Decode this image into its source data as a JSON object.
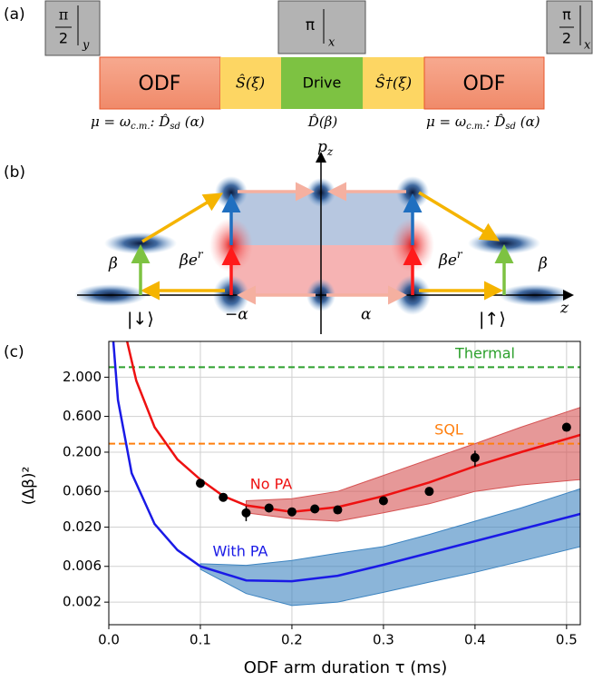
{
  "panel_a": {
    "label": "(a)",
    "pulses": [
      {
        "numerator": "π",
        "denominator": "2",
        "axis": "y"
      },
      {
        "numerator": "π",
        "axis": "x"
      },
      {
        "numerator": "π",
        "denominator": "2",
        "axis": "x"
      }
    ],
    "blocks": [
      "ODF",
      "Ŝ(ξ)",
      "Drive",
      "Ŝ†(ξ)",
      "ODF"
    ],
    "captions": [
      [
        "μ = ω",
        "c.m.",
        ": D̂",
        "sd",
        " (α)"
      ],
      [
        "D̂(β)"
      ],
      [
        "μ = ω",
        "c.m.",
        ": D̂",
        "sd",
        " (α)"
      ]
    ]
  },
  "panel_b": {
    "label": "(b)",
    "y_axis": {
      "base": "p",
      "sub": "z"
    },
    "x_axis": "z",
    "beta": "β",
    "beta_squeezed": [
      "βe",
      "r"
    ],
    "spin_down": "|↓⟩",
    "spin_up": "|↑⟩",
    "minus_alpha": "−α",
    "alpha": "α"
  },
  "chart_data": {
    "type": "line",
    "panel_label": "(c)",
    "xlabel": "ODF arm duration τ (ms)",
    "ylabel": "(Δβ)²",
    "log_y": true,
    "grid": true,
    "xlim": [
      0,
      0.515
    ],
    "ylim": [
      0.001,
      6
    ],
    "xticks": [
      {
        "value": 0,
        "label": "0.0"
      },
      0.1,
      0.2,
      0.3,
      0.4,
      0.5
    ],
    "yticks": [
      0.002,
      0.006,
      {
        "value": 0.02,
        "label": "0.020"
      },
      {
        "value": 0.06,
        "label": "0.060"
      },
      {
        "value": 0.2,
        "label": "0.200"
      },
      {
        "value": 0.6,
        "label": "0.600"
      },
      {
        "value": 2,
        "label": "2.000"
      }
    ],
    "series": [
      {
        "name": "No PA",
        "color": "#ee1111",
        "band_color": "#d65454",
        "x": [
          0.02,
          0.03,
          0.05,
          0.075,
          0.1,
          0.125,
          0.15,
          0.2,
          0.25,
          0.3,
          0.35,
          0.4,
          0.45,
          0.515
        ],
        "values": [
          6,
          1.8,
          0.43,
          0.16,
          0.086,
          0.052,
          0.039,
          0.032,
          0.037,
          0.052,
          0.079,
          0.13,
          0.2,
          0.34
        ],
        "band_x": [
          0.15,
          0.2,
          0.25,
          0.3,
          0.35,
          0.4,
          0.45,
          0.515
        ],
        "band_upper": [
          0.045,
          0.048,
          0.06,
          0.098,
          0.16,
          0.26,
          0.43,
          0.79
        ],
        "band_lower": [
          0.031,
          0.026,
          0.024,
          0.031,
          0.041,
          0.06,
          0.073,
          0.086
        ]
      },
      {
        "name": "With PA",
        "color": "#1a1ae6",
        "band_color": "#3d84c0",
        "x": [
          0.005,
          0.01,
          0.025,
          0.05,
          0.075,
          0.1,
          0.15,
          0.2,
          0.25,
          0.3,
          0.4,
          0.515
        ],
        "values": [
          6,
          0.99,
          0.105,
          0.022,
          0.0099,
          0.006,
          0.0039,
          0.0038,
          0.0045,
          0.0063,
          0.013,
          0.03
        ],
        "band_x": [
          0.1,
          0.15,
          0.2,
          0.25,
          0.3,
          0.35,
          0.4,
          0.45,
          0.515
        ],
        "band_upper": [
          0.0065,
          0.0062,
          0.0072,
          0.009,
          0.011,
          0.016,
          0.024,
          0.036,
          0.065
        ],
        "band_lower": [
          0.0055,
          0.0026,
          0.0018,
          0.002,
          0.0027,
          0.0037,
          0.005,
          0.007,
          0.011
        ]
      }
    ],
    "points": {
      "color": "#000000",
      "x": [
        0.1,
        0.125,
        0.15,
        0.175,
        0.2,
        0.225,
        0.25,
        0.3,
        0.35,
        0.4,
        0.5
      ],
      "values": [
        0.077,
        0.05,
        0.031,
        0.036,
        0.032,
        0.035,
        0.034,
        0.045,
        0.06,
        0.169,
        0.43
      ],
      "errors": [
        null,
        null,
        0.007,
        null,
        null,
        null,
        null,
        null,
        null,
        0.04,
        null
      ]
    },
    "hlines": [
      {
        "label": "Thermal",
        "value": 2.72,
        "color": "#2ca02c"
      },
      {
        "label": "SQL",
        "value": 0.26,
        "color": "#ff7f0e"
      }
    ]
  }
}
